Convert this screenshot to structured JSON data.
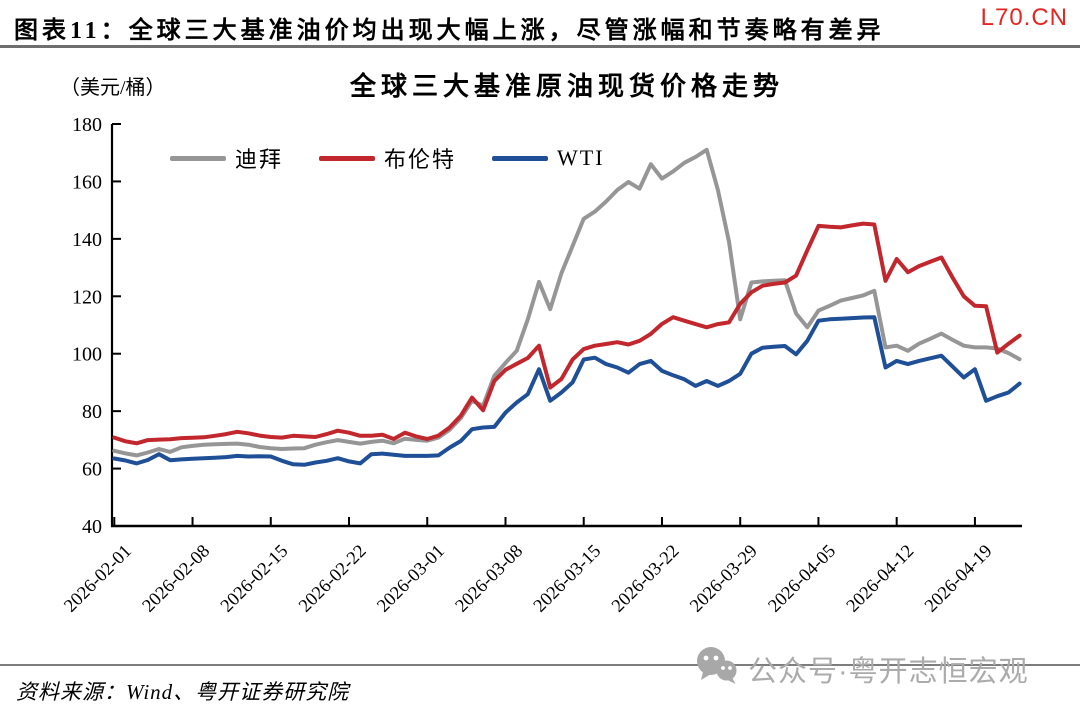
{
  "page": {
    "header": {
      "label": "图表11：",
      "title": "全球三大基准油价均出现大幅上涨，尽管涨幅和节奏略有差异",
      "site": "L70.CN",
      "site_color": "#e6261f"
    },
    "footer": {
      "source": "资料来源：Wind、粤开证券研究院",
      "watermark": "公众号·粤开志恒宏观",
      "watermark_color": "#ababab",
      "wechat_icon_color": "#a8a8a8"
    }
  },
  "chart_data": {
    "type": "line",
    "title": "全球三大基准原油现货价格走势",
    "unit_label": "（美元/桶）",
    "xlabel": "",
    "ylabel": "美元/桶",
    "ylim": [
      40,
      180
    ],
    "y_ticks": [
      40,
      60,
      80,
      100,
      120,
      140,
      160,
      180
    ],
    "grid": false,
    "legend_position": "top-inside",
    "x_start_date": "2026-02-01",
    "x_end_date": "2026-04-23",
    "x_frequency": "daily",
    "x_tick_labels": [
      "2026-02-01",
      "2026-02-08",
      "2026-02-15",
      "2026-02-22",
      "2026-03-01",
      "2026-03-08",
      "2026-03-15",
      "2026-03-22",
      "2026-03-29",
      "2026-04-05",
      "2026-04-12",
      "2026-04-19"
    ],
    "x_tick_day_step": 7,
    "axis_color": "#000000",
    "series": [
      {
        "key": "dubai",
        "name": "迪拜",
        "color": "#969696",
        "values": [
          66.2,
          65.3,
          64.6,
          65.6,
          66.8,
          65.8,
          67.4,
          67.9,
          68.3,
          68.5,
          68.6,
          68.7,
          68.3,
          67.5,
          67.1,
          66.8,
          67.0,
          67.1,
          68.3,
          69.2,
          69.9,
          69.3,
          68.7,
          69.3,
          69.7,
          68.8,
          70.4,
          70.0,
          69.7,
          70.8,
          73.5,
          77.6,
          83.6,
          81.9,
          92.3,
          96.8,
          101.0,
          112.0,
          125.0,
          115.5,
          128.0,
          137.5,
          147.0,
          149.5,
          153.0,
          157.0,
          159.8,
          157.5,
          166.0,
          161.0,
          163.5,
          166.5,
          168.5,
          171.0,
          157.0,
          139.0,
          112.0,
          124.8,
          125.2,
          125.4,
          125.6,
          114.0,
          109.2,
          115.0,
          116.7,
          118.5,
          119.4,
          120.3,
          121.9,
          102.2,
          102.8,
          101.0,
          103.5,
          105.2,
          107.0,
          104.8,
          102.8,
          102.2,
          102.2,
          101.8,
          100.2,
          98.1
        ]
      },
      {
        "key": "brent",
        "name": "布伦特",
        "color": "#c1272d",
        "values": [
          70.8,
          69.5,
          68.8,
          69.9,
          70.1,
          70.2,
          70.6,
          70.7,
          70.9,
          71.4,
          72.0,
          72.8,
          72.3,
          71.5,
          71.0,
          70.8,
          71.4,
          71.2,
          71.0,
          72.0,
          73.2,
          72.5,
          71.4,
          71.4,
          71.8,
          70.3,
          72.5,
          71.2,
          70.3,
          71.5,
          74.3,
          78.4,
          84.7,
          80.3,
          90.5,
          94.4,
          96.5,
          98.5,
          102.8,
          88.2,
          91.2,
          98.0,
          101.6,
          102.8,
          103.4,
          104.0,
          103.2,
          104.5,
          106.9,
          110.4,
          112.7,
          111.5,
          110.3,
          109.2,
          110.3,
          110.9,
          117.4,
          121.4,
          123.7,
          124.3,
          124.8,
          127.2,
          136.0,
          144.5,
          144.2,
          144.0,
          144.7,
          145.3,
          145.0,
          125.4,
          133.0,
          128.4,
          130.5,
          132.0,
          133.5,
          126.5,
          120.0,
          116.7,
          116.5,
          100.4,
          103.5,
          106.3
        ]
      },
      {
        "key": "wti",
        "name": "WTI",
        "color": "#1f4f96",
        "values": [
          63.5,
          62.8,
          61.8,
          63.0,
          65.0,
          62.9,
          63.2,
          63.4,
          63.6,
          63.8,
          64.0,
          64.4,
          64.2,
          64.3,
          64.2,
          62.7,
          61.5,
          61.3,
          62.1,
          62.7,
          63.6,
          62.5,
          61.8,
          65.0,
          65.2,
          64.8,
          64.4,
          64.4,
          64.4,
          64.6,
          67.3,
          69.6,
          73.7,
          74.3,
          74.5,
          79.5,
          83.0,
          85.9,
          94.6,
          83.6,
          86.5,
          90.0,
          98.0,
          98.6,
          96.4,
          95.2,
          93.4,
          96.4,
          97.5,
          94.0,
          92.5,
          91.1,
          88.8,
          90.5,
          88.8,
          90.5,
          93.0,
          100.0,
          102.1,
          102.4,
          102.7,
          99.8,
          104.5,
          111.5,
          112.0,
          112.2,
          112.4,
          112.6,
          112.7,
          95.2,
          97.5,
          96.4,
          97.5,
          98.4,
          99.3,
          95.5,
          91.7,
          94.6,
          83.6,
          85.2,
          86.5,
          89.6
        ]
      }
    ]
  }
}
